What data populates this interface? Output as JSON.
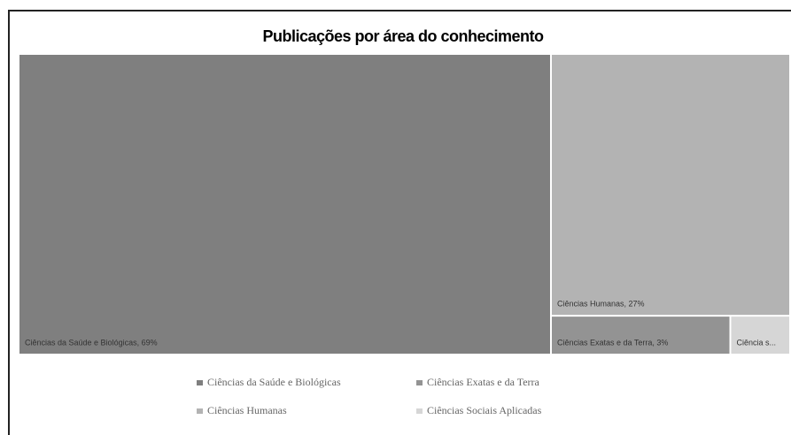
{
  "chart_data": {
    "type": "treemap",
    "title": "Publicações por área do conhecimento",
    "categories": [
      "Ciências da Saúde e Biológicas",
      "Ciências Humanas",
      "Ciências Exatas e da Terra",
      "Ciências Sociais Aplicadas"
    ],
    "values": [
      69,
      27,
      3,
      1
    ],
    "value_labels": [
      "Ciências da Saúde e Biológicas, 69%",
      "Ciências Humanas, 27%",
      "Ciências Exatas e da Terra, 3%",
      "Ciência s..."
    ],
    "colors": [
      "#7f7f7f",
      "#b3b3b3",
      "#939393",
      "#d6d6d6"
    ],
    "legend": "bottom"
  }
}
